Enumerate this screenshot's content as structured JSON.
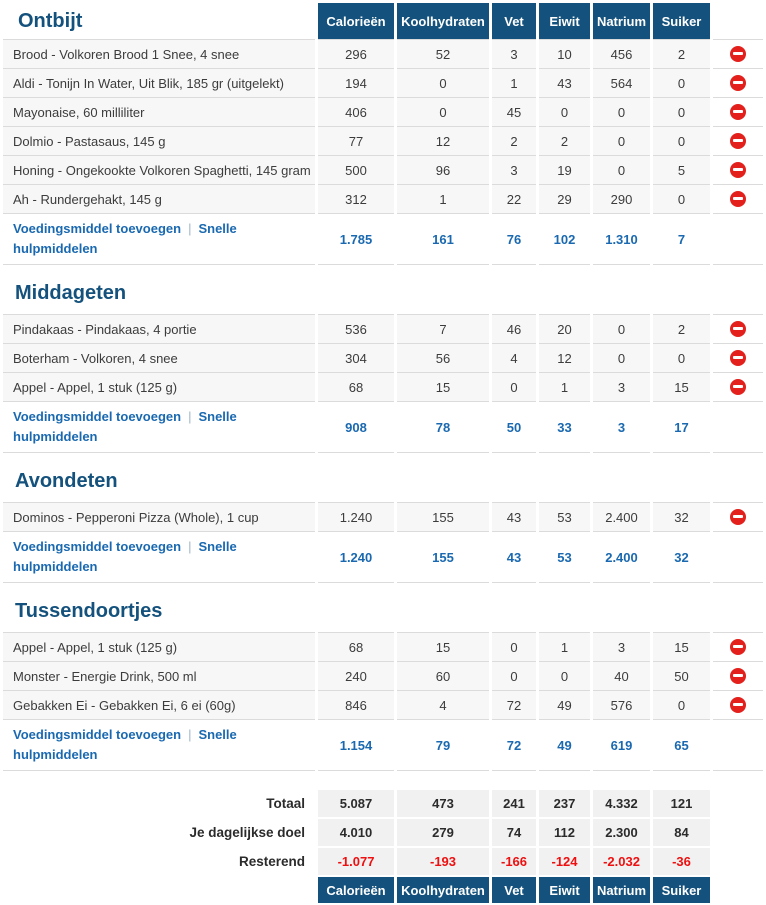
{
  "colors": {
    "header_bg": "#14527D",
    "title": "#14527D",
    "link": "#1A69B0",
    "negative": "#EE1010",
    "delete": "#E3201B",
    "line": "#DBDBDB",
    "row_bg": "#F7F7F7",
    "sum_bg": "#F1F1F1",
    "text": "#3C3C3C"
  },
  "columns": [
    "Calorieën",
    "Koolhydraten",
    "Vet",
    "Eiwit",
    "Natrium",
    "Suiker"
  ],
  "links": {
    "add_food": "Voedingsmiddel toevoegen",
    "separator": "|",
    "quick_tools": "Snelle hulpmiddelen"
  },
  "delete_icon": "remove-entry",
  "sections": [
    {
      "title": "Ontbijt",
      "rows": [
        {
          "name": "Brood - Volkoren Brood 1 Snee, 4 snee",
          "values": [
            "296",
            "52",
            "3",
            "10",
            "456",
            "2"
          ]
        },
        {
          "name": "Aldi - Tonijn In Water, Uit Blik, 185 gr (uitgelekt)",
          "values": [
            "194",
            "0",
            "1",
            "43",
            "564",
            "0"
          ]
        },
        {
          "name": "Mayonaise, 60 milliliter",
          "values": [
            "406",
            "0",
            "45",
            "0",
            "0",
            "0"
          ]
        },
        {
          "name": "Dolmio - Pastasaus, 145 g",
          "values": [
            "77",
            "12",
            "2",
            "2",
            "0",
            "0"
          ]
        },
        {
          "name": "Honing - Ongekookte Volkoren Spaghetti, 145 gram",
          "values": [
            "500",
            "96",
            "3",
            "19",
            "0",
            "5"
          ]
        },
        {
          "name": "Ah - Rundergehakt, 145 g",
          "values": [
            "312",
            "1",
            "22",
            "29",
            "290",
            "0"
          ]
        }
      ],
      "totals": [
        "1.785",
        "161",
        "76",
        "102",
        "1.310",
        "7"
      ]
    },
    {
      "title": "Middageten",
      "rows": [
        {
          "name": "Pindakaas - Pindakaas, 4 portie",
          "values": [
            "536",
            "7",
            "46",
            "20",
            "0",
            "2"
          ]
        },
        {
          "name": "Boterham - Volkoren, 4 snee",
          "values": [
            "304",
            "56",
            "4",
            "12",
            "0",
            "0"
          ]
        },
        {
          "name": "Appel - Appel, 1 stuk (125 g)",
          "values": [
            "68",
            "15",
            "0",
            "1",
            "3",
            "15"
          ]
        }
      ],
      "totals": [
        "908",
        "78",
        "50",
        "33",
        "3",
        "17"
      ]
    },
    {
      "title": "Avondeten",
      "rows": [
        {
          "name": "Dominos - Pepperoni Pizza (Whole), 1 cup",
          "values": [
            "1.240",
            "155",
            "43",
            "53",
            "2.400",
            "32"
          ]
        }
      ],
      "totals": [
        "1.240",
        "155",
        "43",
        "53",
        "2.400",
        "32"
      ]
    },
    {
      "title": "Tussendoortjes",
      "rows": [
        {
          "name": "Appel - Appel, 1 stuk (125 g)",
          "values": [
            "68",
            "15",
            "0",
            "1",
            "3",
            "15"
          ]
        },
        {
          "name": "Monster - Energie Drink, 500 ml",
          "values": [
            "240",
            "60",
            "0",
            "0",
            "40",
            "50"
          ]
        },
        {
          "name": "Gebakken Ei - Gebakken Ei, 6 ei (60g)",
          "values": [
            "846",
            "4",
            "72",
            "49",
            "576",
            "0"
          ]
        }
      ],
      "totals": [
        "1.154",
        "79",
        "72",
        "49",
        "619",
        "65"
      ]
    }
  ],
  "summary": {
    "rows": [
      {
        "label": "Totaal",
        "values": [
          "5.087",
          "473",
          "241",
          "237",
          "4.332",
          "121"
        ],
        "negative": false
      },
      {
        "label": "Je dagelijkse doel",
        "values": [
          "4.010",
          "279",
          "74",
          "112",
          "2.300",
          "84"
        ],
        "negative": false
      },
      {
        "label": "Resterend",
        "values": [
          "-1.077",
          "-193",
          "-166",
          "-124",
          "-2.032",
          "-36"
        ],
        "negative": true
      }
    ]
  }
}
